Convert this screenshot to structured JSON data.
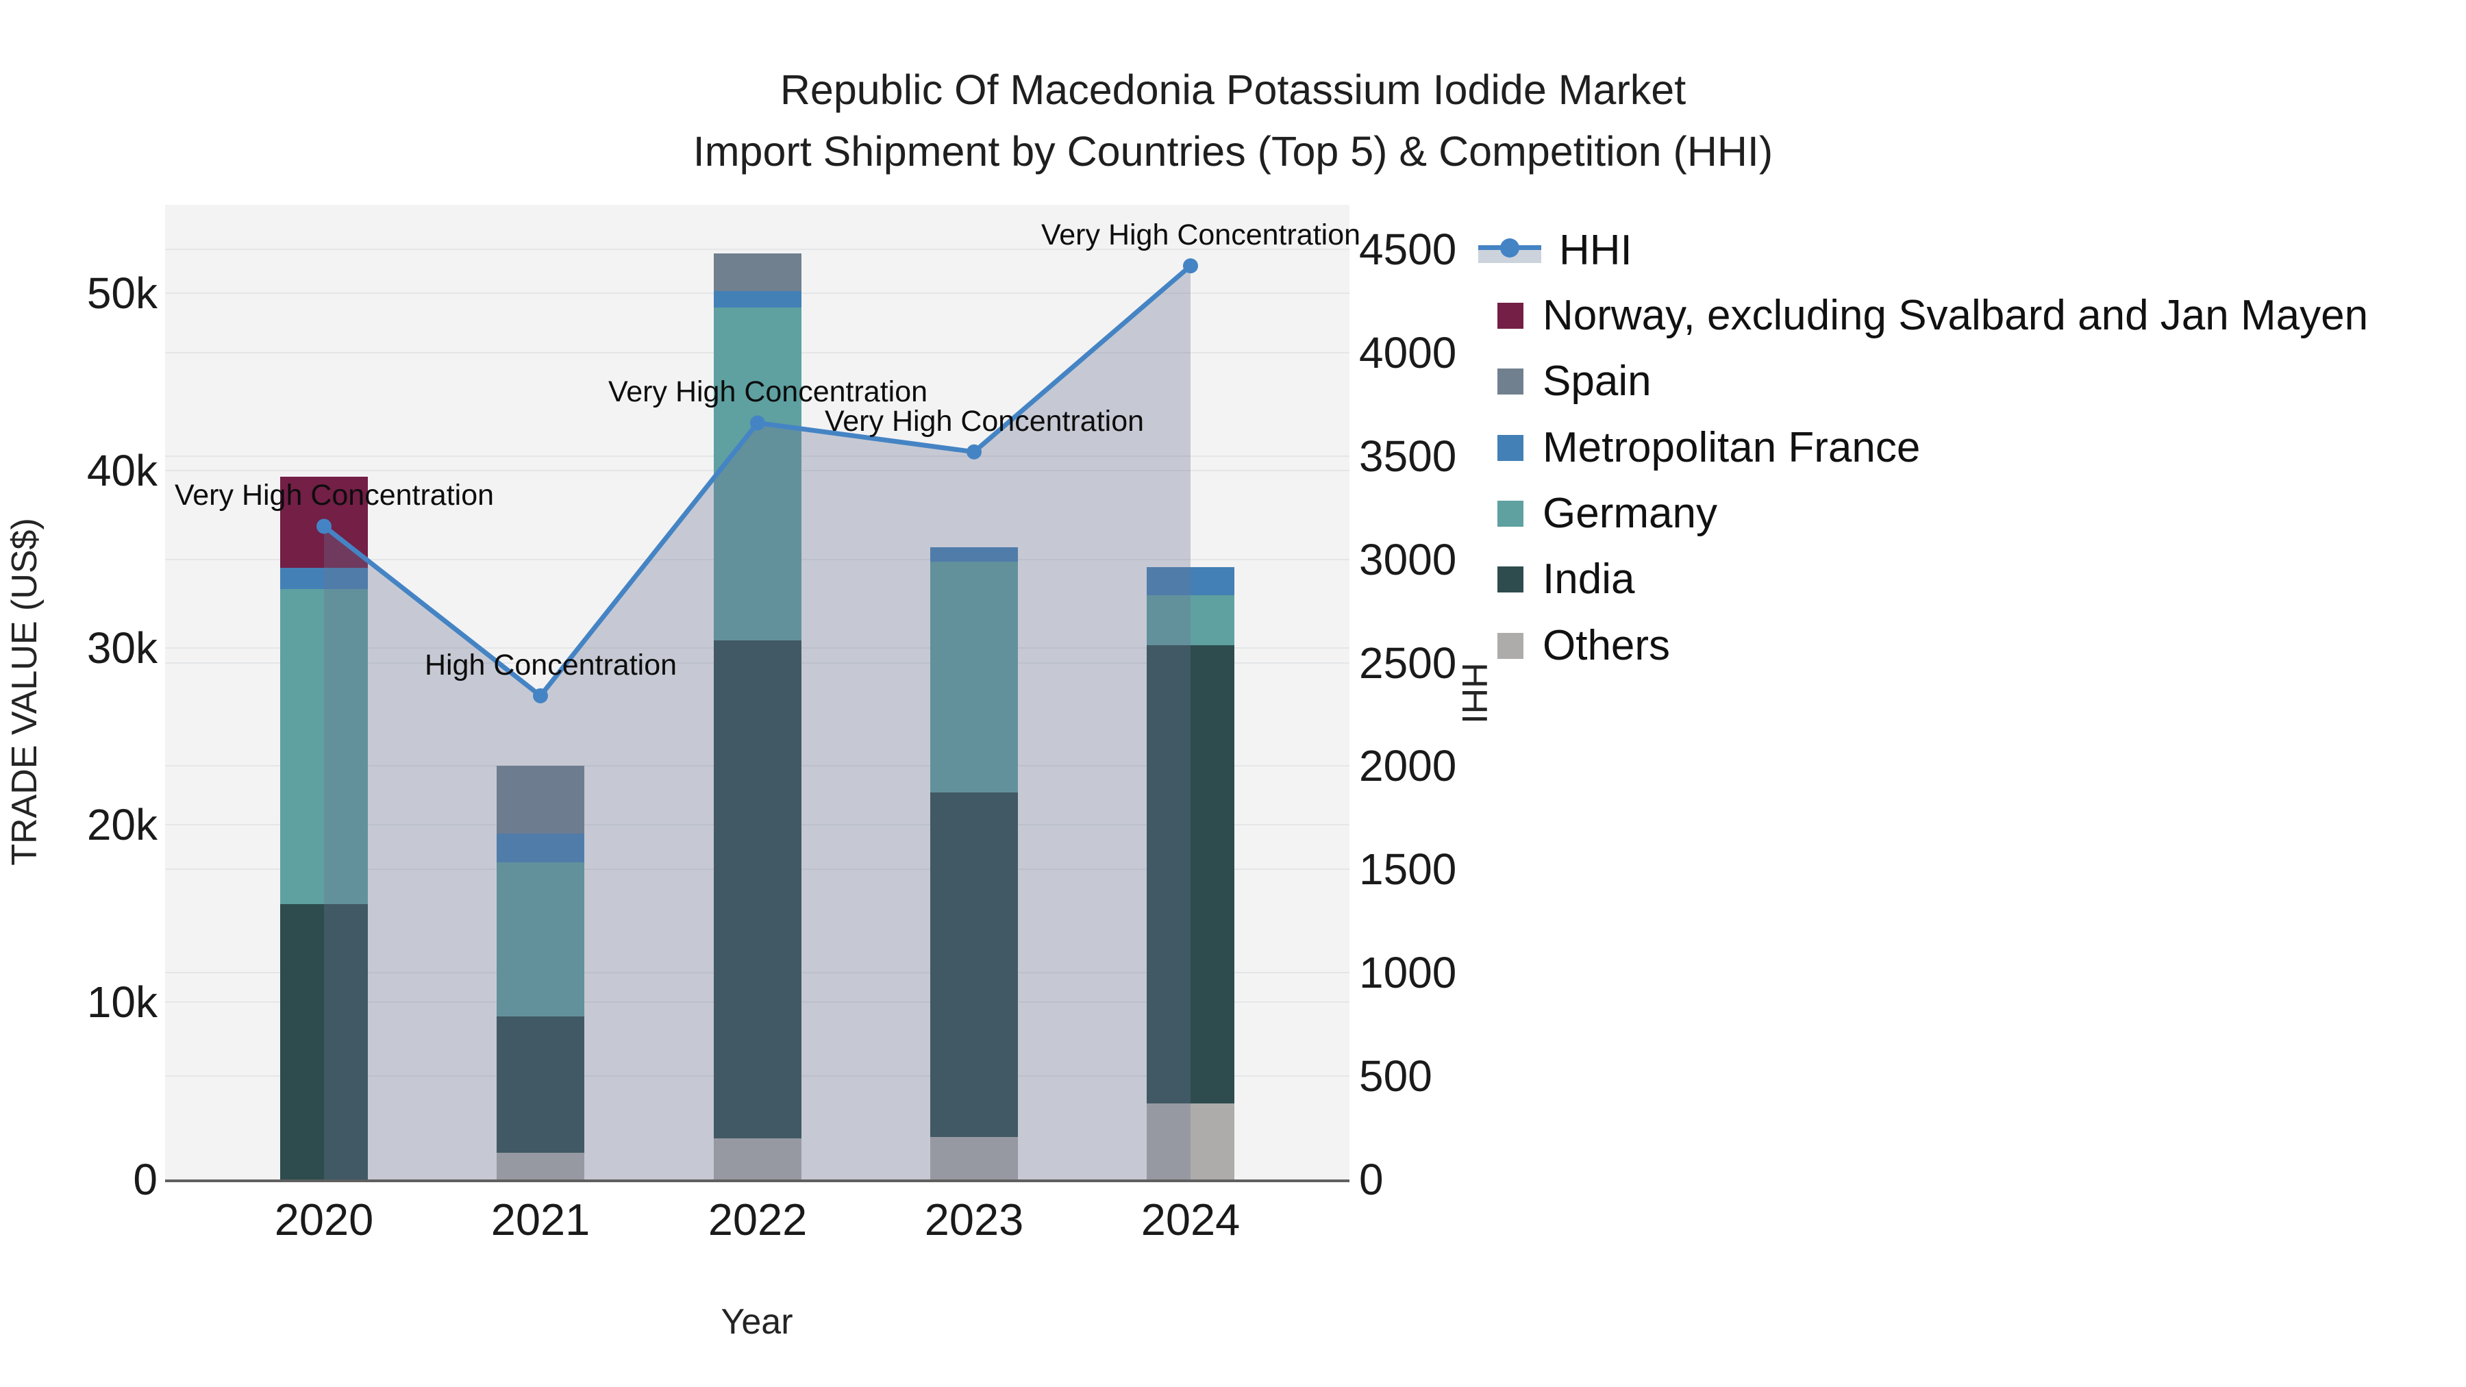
{
  "title": {
    "line1": "Republic Of Macedonia Potassium Iodide Market",
    "line2": "Import Shipment by Countries (Top 5) & Competition (HHI)"
  },
  "axes": {
    "x_label": "Year",
    "y_left_label": "TRADE VALUE (US$)",
    "y_right_label": "HHI"
  },
  "legend": {
    "items": [
      {
        "label": "HHI",
        "type": "line",
        "color": "#4584c4"
      },
      {
        "label": "Norway, excluding Svalbard and Jan Mayen",
        "type": "bar",
        "color": "#731f46"
      },
      {
        "label": "Spain",
        "type": "bar",
        "color": "#71808f"
      },
      {
        "label": "Metropolitan France",
        "type": "bar",
        "color": "#4380b6"
      },
      {
        "label": "Germany",
        "type": "bar",
        "color": "#5fa0a1"
      },
      {
        "label": "India",
        "type": "bar",
        "color": "#2e4c4e"
      },
      {
        "label": "Others",
        "type": "bar",
        "color": "#adacaa"
      }
    ]
  },
  "chart_data": {
    "type": "combo",
    "subtypes": [
      "stacked-bar",
      "line-with-area"
    ],
    "categories": [
      "2020",
      "2021",
      "2022",
      "2023",
      "2024"
    ],
    "bar_value_unit": "US$ (trade value)",
    "bar_series": [
      {
        "name": "Norway, excluding Svalbard and Jan Mayen",
        "color": "#731f46",
        "values": [
          5150,
          0,
          0,
          0,
          0
        ]
      },
      {
        "name": "Spain",
        "color": "#71808f",
        "values": [
          0,
          3850,
          2150,
          0,
          0
        ]
      },
      {
        "name": "Metropolitan France",
        "color": "#4380b6",
        "values": [
          1200,
          1600,
          900,
          800,
          1600
        ]
      },
      {
        "name": "Germany",
        "color": "#5fa0a1",
        "values": [
          17750,
          8700,
          18800,
          13000,
          2800
        ]
      },
      {
        "name": "India",
        "color": "#2e4c4e",
        "values": [
          15550,
          7700,
          28100,
          19450,
          25850
        ]
      },
      {
        "name": "Others",
        "color": "#adacaa",
        "values": [
          0,
          1500,
          2300,
          2400,
          4300
        ]
      }
    ],
    "stack_order_bottom_to_top": [
      "Others",
      "India",
      "Germany",
      "Metropolitan France",
      "Spain",
      "Norway, excluding Svalbard and Jan Mayen"
    ],
    "bar_totals": [
      39650,
      23350,
      52250,
      35650,
      34550
    ],
    "line_series": {
      "name": "HHI",
      "color": "#4584c4",
      "area_fill": "rgba(106,116,146,0.33)",
      "values": [
        3160,
        2340,
        3660,
        3520,
        4420
      ]
    },
    "annotations": [
      {
        "x": "2020",
        "text": "Very High Concentration"
      },
      {
        "x": "2021",
        "text": "High Concentration"
      },
      {
        "x": "2022",
        "text": "Very High Concentration"
      },
      {
        "x": "2023",
        "text": "Very High Concentration"
      },
      {
        "x": "2024",
        "text": "Very High Concentration"
      }
    ],
    "title": "Republic Of Macedonia Potassium Iodide Market Import Shipment by Countries (Top 5) & Competition (HHI)",
    "xlabel": "Year",
    "ylabel": "TRADE VALUE (US$)",
    "y2label": "HHI",
    "y_left": {
      "tick_values": [
        0,
        10000,
        20000,
        30000,
        40000,
        50000
      ],
      "tick_labels": [
        "0",
        "10k",
        "20k",
        "30k",
        "40k",
        "50k"
      ],
      "range": [
        0,
        54980
      ]
    },
    "y_right": {
      "tick_values": [
        0,
        500,
        1000,
        1500,
        2000,
        2500,
        3000,
        3500,
        4000,
        4500
      ],
      "tick_labels": [
        "0",
        "500",
        "1000",
        "1500",
        "2000",
        "2500",
        "3000",
        "3500",
        "4000",
        "4500"
      ],
      "range": [
        0,
        4716
      ]
    },
    "grid": true,
    "legend_position": "top-right",
    "plot_background": "#f3f3f4"
  }
}
